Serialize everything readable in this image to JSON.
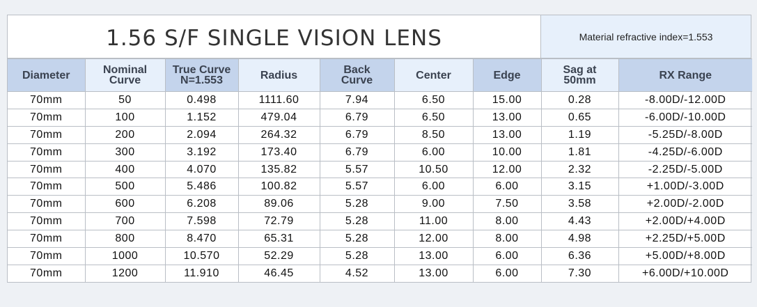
{
  "title": "1.56 S/F SINGLE VISION LENS",
  "material_note": "Material refractive index=1.553",
  "headers": [
    [
      "Diameter"
    ],
    [
      "Nominal",
      "Curve"
    ],
    [
      "True Curve",
      "N=1.553"
    ],
    [
      "Radius"
    ],
    [
      "Back",
      "Curve"
    ],
    [
      "Center"
    ],
    [
      "Edge"
    ],
    [
      "Sag at",
      "50mm"
    ],
    [
      "RX Range"
    ]
  ],
  "rows": [
    [
      "70mm",
      "50",
      "0.498",
      "1111.60",
      "7.94",
      "6.50",
      "15.00",
      "0.28",
      "-8.00D/-12.00D"
    ],
    [
      "70mm",
      "100",
      "1.152",
      "479.04",
      "6.79",
      "6.50",
      "13.00",
      "0.65",
      "-6.00D/-10.00D"
    ],
    [
      "70mm",
      "200",
      "2.094",
      "264.32",
      "6.79",
      "8.50",
      "13.00",
      "1.19",
      "-5.25D/-8.00D"
    ],
    [
      "70mm",
      "300",
      "3.192",
      "173.40",
      "6.79",
      "6.00",
      "10.00",
      "1.81",
      "-4.25D/-6.00D"
    ],
    [
      "70mm",
      "400",
      "4.070",
      "135.82",
      "5.57",
      "10.50",
      "12.00",
      "2.32",
      "-2.25D/-5.00D"
    ],
    [
      "70mm",
      "500",
      "5.486",
      "100.82",
      "5.57",
      "6.00",
      "6.00",
      "3.15",
      "+1.00D/-3.00D"
    ],
    [
      "70mm",
      "600",
      "6.208",
      "89.06",
      "5.28",
      "9.00",
      "7.50",
      "3.58",
      "+2.00D/-2.00D"
    ],
    [
      "70mm",
      "700",
      "7.598",
      "72.79",
      "5.28",
      "11.00",
      "8.00",
      "4.43",
      "+2.00D/+4.00D"
    ],
    [
      "70mm",
      "800",
      "8.470",
      "65.31",
      "5.28",
      "12.00",
      "8.00",
      "4.98",
      "+2.25D/+5.00D"
    ],
    [
      "70mm",
      "1000",
      "10.570",
      "52.29",
      "5.28",
      "13.00",
      "6.00",
      "6.36",
      "+5.00D/+8.00D"
    ],
    [
      "70mm",
      "1200",
      "11.910",
      "46.45",
      "4.52",
      "13.00",
      "6.00",
      "7.30",
      "+6.00D/+10.00D"
    ]
  ],
  "colors": {
    "header_dark": "#c4d4ec",
    "header_light": "#e7f0fb",
    "border": "#b9bec5"
  }
}
